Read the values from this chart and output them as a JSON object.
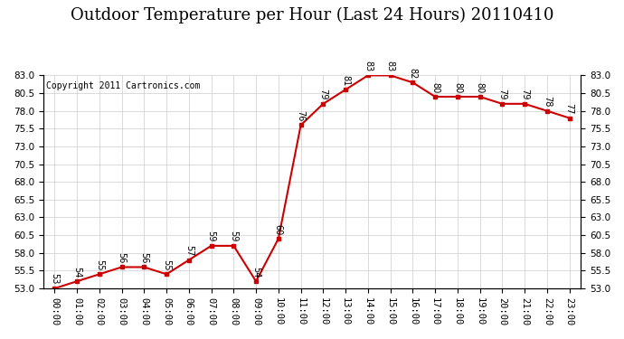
{
  "title": "Outdoor Temperature per Hour (Last 24 Hours) 20110410",
  "copyright": "Copyright 2011 Cartronics.com",
  "hours": [
    "00:00",
    "01:00",
    "02:00",
    "03:00",
    "04:00",
    "05:00",
    "06:00",
    "07:00",
    "08:00",
    "09:00",
    "10:00",
    "11:00",
    "12:00",
    "13:00",
    "14:00",
    "15:00",
    "16:00",
    "17:00",
    "18:00",
    "19:00",
    "20:00",
    "21:00",
    "22:00",
    "23:00"
  ],
  "temps": [
    53,
    54,
    55,
    56,
    56,
    55,
    57,
    59,
    59,
    54,
    60,
    76,
    79,
    81,
    83,
    83,
    82,
    80,
    80,
    80,
    79,
    79,
    78,
    77
  ],
  "temp_labels": [
    "53",
    "54",
    "55",
    "56",
    "56",
    "55",
    "57",
    "59",
    "59",
    "54",
    "60",
    "76",
    "79",
    "81",
    "83",
    "83",
    "82",
    "80",
    "80",
    "80",
    "79",
    "79",
    "78",
    "77"
  ],
  "ylim_left": [
    53.0,
    83.0
  ],
  "ylim_right": [
    53.0,
    83.0
  ],
  "yticks_left": [
    53.0,
    55.5,
    58.0,
    60.5,
    63.0,
    65.5,
    68.0,
    70.5,
    73.0,
    75.5,
    78.0,
    80.5,
    83.0
  ],
  "yticks_right": [
    53.0,
    55.5,
    58.0,
    60.5,
    63.0,
    65.5,
    68.0,
    70.5,
    73.0,
    75.5,
    78.0,
    80.5,
    83.0
  ],
  "line_color": "#cc0000",
  "marker_color": "#cc0000",
  "bg_color": "#ffffff",
  "grid_color": "#cccccc",
  "title_fontsize": 13,
  "label_fontsize": 7,
  "tick_fontsize": 7.5,
  "copyright_fontsize": 7
}
